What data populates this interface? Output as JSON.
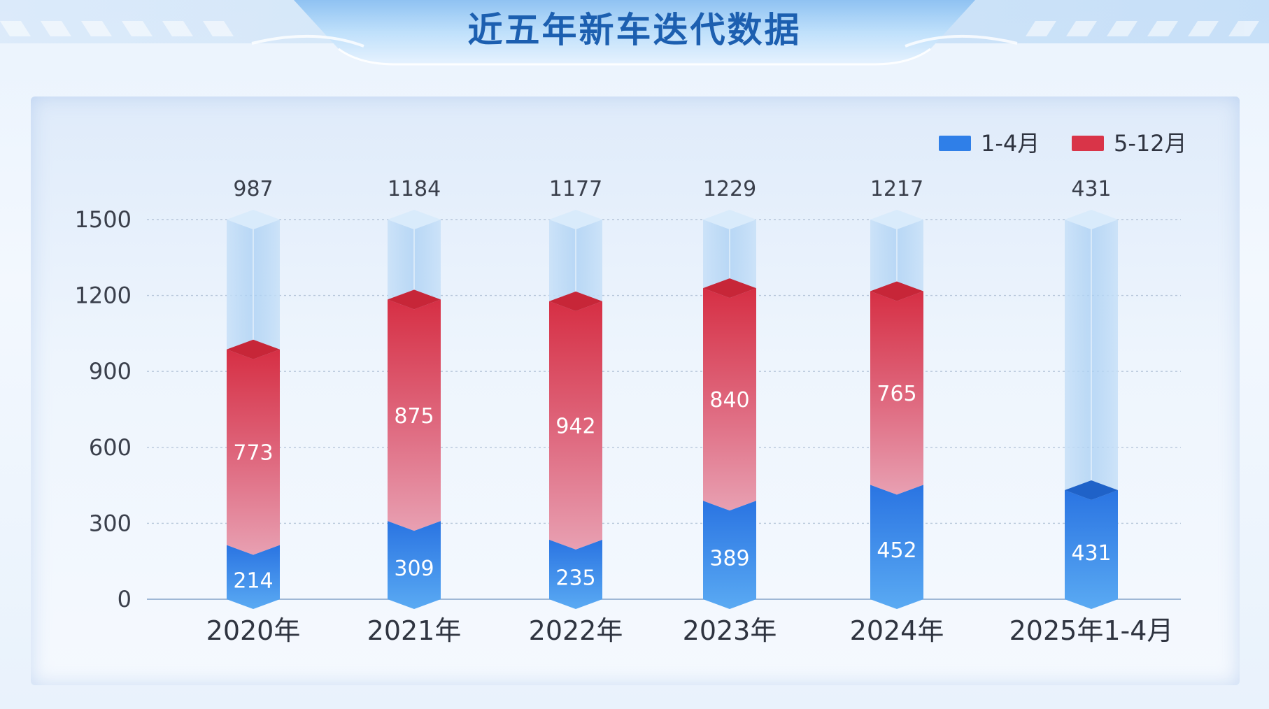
{
  "page": {
    "title": "近五年新车迭代数据"
  },
  "colors": {
    "segment_1_4": "#2f7fe8",
    "segment_5_12": "#d93448",
    "track": "#bcdaf7",
    "title_text": "#1c5fb0"
  },
  "chart_data": {
    "type": "bar",
    "stacked": true,
    "title": "近五年新车迭代数据",
    "categories": [
      "2020年",
      "2021年",
      "2022年",
      "2023年",
      "2024年",
      "2025年1-4月"
    ],
    "series": [
      {
        "name": "1-4月",
        "values": [
          214,
          309,
          235,
          389,
          452,
          431
        ]
      },
      {
        "name": "5-12月",
        "values": [
          773,
          875,
          942,
          840,
          765,
          null
        ]
      }
    ],
    "totals": [
      987,
      1184,
      1177,
      1229,
      1217,
      431
    ],
    "y_ticks": [
      0,
      300,
      600,
      900,
      1200,
      1500
    ],
    "ylim": [
      0,
      1500
    ],
    "grid": true,
    "legend_position": "top-right"
  }
}
